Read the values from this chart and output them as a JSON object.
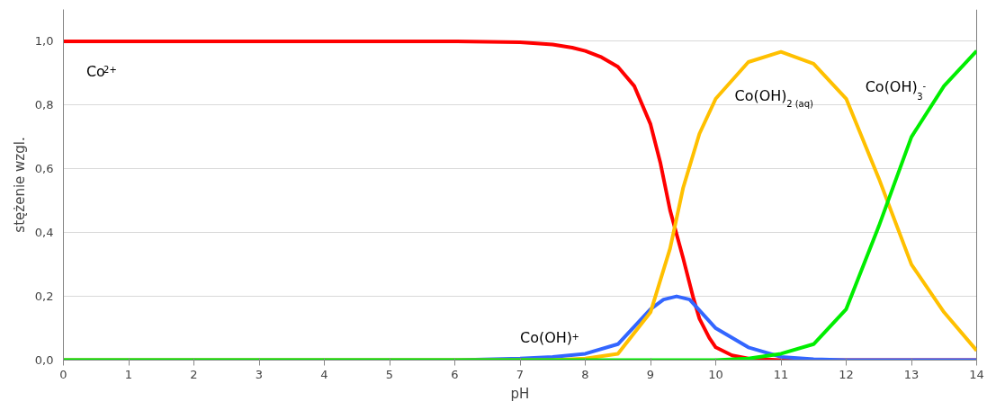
{
  "chart_data": {
    "type": "line",
    "xlabel": "pH",
    "ylabel": "stężenie wzgl.",
    "xlim": [
      0,
      14
    ],
    "ylim": [
      0,
      1.1
    ],
    "xticks": [
      0,
      1,
      2,
      3,
      4,
      5,
      6,
      7,
      8,
      9,
      10,
      11,
      12,
      13,
      14
    ],
    "yticks": [
      {
        "value": 0,
        "label": "0,0"
      },
      {
        "value": 0.2,
        "label": "0,2"
      },
      {
        "value": 0.4,
        "label": "0,4"
      },
      {
        "value": 0.6,
        "label": "0,6"
      },
      {
        "value": 0.8,
        "label": "0,8"
      },
      {
        "value": 1.0,
        "label": "1,0"
      }
    ],
    "grid": "y",
    "line_style": "solid",
    "marker": "none",
    "series": [
      {
        "name": "Co$^{2+}$",
        "color": "#ff0000",
        "x": [
          0,
          2,
          4,
          6,
          7,
          7.5,
          7.8,
          8,
          8.25,
          8.5,
          8.75,
          9,
          9.15,
          9.3,
          9.5,
          9.65,
          9.75,
          9.9,
          10,
          10.25,
          10.5,
          11,
          12,
          14
        ],
        "values": [
          1.0,
          1.0,
          1.0,
          1.0,
          0.997,
          0.99,
          0.98,
          0.97,
          0.95,
          0.92,
          0.86,
          0.74,
          0.62,
          0.47,
          0.32,
          0.2,
          0.13,
          0.07,
          0.04,
          0.015,
          0.005,
          0,
          0,
          0
        ]
      },
      {
        "name": "Co(OH)$^{+}$",
        "color": "#3366ff",
        "x": [
          0,
          4,
          6,
          7,
          7.5,
          8,
          8.5,
          9,
          9.2,
          9.4,
          9.6,
          10,
          10.5,
          11,
          11.5,
          12,
          14
        ],
        "values": [
          0,
          0,
          0,
          0.005,
          0.01,
          0.02,
          0.05,
          0.16,
          0.19,
          0.2,
          0.19,
          0.1,
          0.04,
          0.01,
          0.003,
          0,
          0
        ]
      },
      {
        "name": "Co(OH)$_{2 (aq)}$",
        "color": "#ffc000",
        "x": [
          0,
          6,
          7.5,
          8,
          8.5,
          9,
          9.3,
          9.5,
          9.75,
          10,
          10.5,
          11,
          11.5,
          12,
          12.5,
          13,
          13.5,
          14
        ],
        "values": [
          0,
          0,
          0,
          0.005,
          0.02,
          0.15,
          0.35,
          0.54,
          0.71,
          0.82,
          0.935,
          0.967,
          0.93,
          0.82,
          0.57,
          0.3,
          0.15,
          0.03
        ]
      },
      {
        "name": "Co(OH)$_{3}$$^{-}$",
        "color": "#00ee00",
        "x": [
          0,
          8,
          10,
          10.5,
          11,
          11.5,
          12,
          12.5,
          13,
          13.5,
          14
        ],
        "values": [
          0,
          0,
          0,
          0.005,
          0.02,
          0.05,
          0.16,
          0.42,
          0.7,
          0.86,
          0.97
        ]
      }
    ]
  }
}
